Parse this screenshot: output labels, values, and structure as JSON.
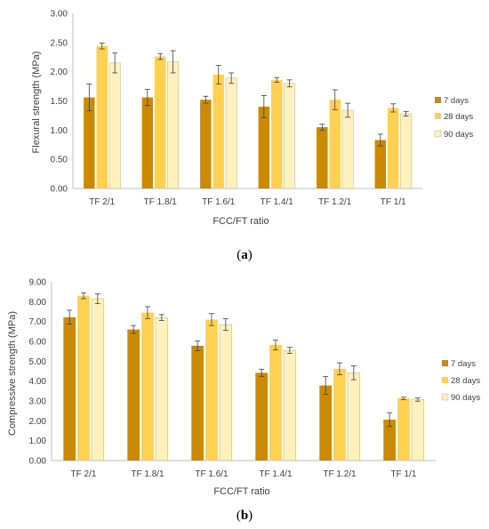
{
  "colors": {
    "series_7d": "#cc8a00",
    "series_28d": "#ffd052",
    "series_90d": "#fff0c0",
    "axis": "#bfbfbf",
    "bar_stroke": "#b07a10"
  },
  "chart_data": [
    {
      "type": "bar",
      "panel_label": "a",
      "categories": [
        "TF 2/1",
        "TF 1.8/1",
        "TF 1.6/1",
        "TF 1.4/1",
        "TF 1.2/1",
        "TF 1/1"
      ],
      "series": [
        {
          "name": "7 days",
          "values": [
            1.56,
            1.56,
            1.52,
            1.4,
            1.05,
            0.83
          ],
          "errors": [
            0.23,
            0.14,
            0.06,
            0.19,
            0.05,
            0.1
          ]
        },
        {
          "name": "28 days",
          "values": [
            2.44,
            2.26,
            1.95,
            1.86,
            1.52,
            1.38
          ],
          "errors": [
            0.05,
            0.05,
            0.16,
            0.04,
            0.17,
            0.07
          ]
        },
        {
          "name": "90 days",
          "values": [
            2.15,
            2.17,
            1.89,
            1.8,
            1.34,
            1.28
          ],
          "errors": [
            0.17,
            0.19,
            0.09,
            0.06,
            0.12,
            0.04
          ]
        }
      ],
      "xlabel": "FCC/FT ratio",
      "ylabel": "Flexural strength (MPa)",
      "ylim": [
        0,
        3
      ],
      "yticks": [
        "0.00",
        "0.50",
        "1.00",
        "1.50",
        "2.00",
        "2.50",
        "3.00"
      ],
      "grid": false,
      "legend_position": "right"
    },
    {
      "type": "bar",
      "panel_label": "b",
      "categories": [
        "TF 2/1",
        "TF 1.8/1",
        "TF 1.6/1",
        "TF 1.4/1",
        "TF 1.2/1",
        "TF 1/1"
      ],
      "series": [
        {
          "name": "7 days",
          "values": [
            7.22,
            6.6,
            5.78,
            4.42,
            3.78,
            2.06
          ],
          "errors": [
            0.35,
            0.2,
            0.25,
            0.18,
            0.45,
            0.35
          ]
        },
        {
          "name": "28 days",
          "values": [
            8.3,
            7.45,
            7.1,
            5.82,
            4.62,
            3.13
          ],
          "errors": [
            0.15,
            0.3,
            0.3,
            0.25,
            0.3,
            0.06
          ]
        },
        {
          "name": "90 days",
          "values": [
            8.15,
            7.2,
            6.85,
            5.55,
            4.42,
            3.07
          ],
          "errors": [
            0.25,
            0.15,
            0.3,
            0.15,
            0.35,
            0.08
          ]
        }
      ],
      "xlabel": "FCC/FT ratio",
      "ylabel": "Compressive strength (MPa)",
      "ylim": [
        0,
        9
      ],
      "yticks": [
        "0.00",
        "1.00",
        "2.00",
        "3.00",
        "4.00",
        "5.00",
        "6.00",
        "7.00",
        "8.00",
        "9.00"
      ],
      "grid": false,
      "legend_position": "right"
    }
  ]
}
